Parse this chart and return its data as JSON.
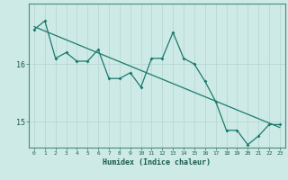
{
  "title": "",
  "xlabel": "Humidex (Indice chaleur)",
  "ylabel": "",
  "bg_color": "#ceeae6",
  "line_color": "#1a7a6e",
  "trend_color": "#1a7a6e",
  "grid_color": "#b8d8d4",
  "tick_label_color": "#1a5a50",
  "x_data": [
    0,
    1,
    2,
    3,
    4,
    5,
    6,
    7,
    8,
    9,
    10,
    11,
    12,
    13,
    14,
    15,
    16,
    17,
    18,
    19,
    20,
    21,
    22,
    23
  ],
  "y_data": [
    16.6,
    16.75,
    16.1,
    16.2,
    16.05,
    16.05,
    16.25,
    15.75,
    15.75,
    15.85,
    15.6,
    16.1,
    16.1,
    16.55,
    16.1,
    16.0,
    15.7,
    15.35,
    14.85,
    14.85,
    14.6,
    14.75,
    14.95,
    14.95
  ],
  "trend_x": [
    0,
    23
  ],
  "trend_y": [
    16.65,
    14.9
  ],
  "ylim": [
    14.55,
    17.05
  ],
  "xlim": [
    -0.5,
    23.5
  ],
  "yticks": [
    15,
    16
  ],
  "xticks": [
    0,
    1,
    2,
    3,
    4,
    5,
    6,
    7,
    8,
    9,
    10,
    11,
    12,
    13,
    14,
    15,
    16,
    17,
    18,
    19,
    20,
    21,
    22,
    23
  ]
}
